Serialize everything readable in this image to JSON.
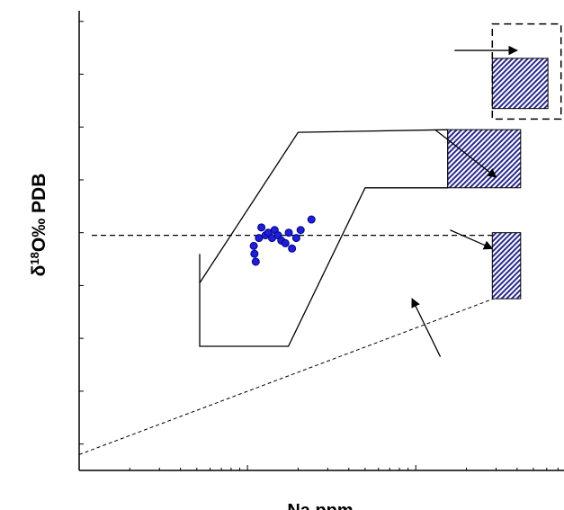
{
  "chart_data": {
    "type": "scatter",
    "title": "",
    "xlabel": "Na ppm",
    "ylabel": {
      "prefix": "δ",
      "superscript": "18",
      "suffix": "O‰ PDB"
    },
    "x_scale": "log",
    "x_ticks_labeled": false,
    "y_ticks_labeled": false,
    "legend": "none",
    "grid": false,
    "colors": {
      "points": "#1f1fd6",
      "point_stroke": "#00008b",
      "boxes": "#2a2a8c",
      "lines": "#000000"
    },
    "series": [
      {
        "type": "scatter",
        "points": [
          {
            "x": 109,
            "y": 2.75
          },
          {
            "x": 110,
            "y": 2.6
          },
          {
            "x": 112,
            "y": 2.45
          },
          {
            "x": 117,
            "y": 2.9
          },
          {
            "x": 121,
            "y": 3.1
          },
          {
            "x": 128,
            "y": 2.95
          },
          {
            "x": 133,
            "y": 3.0
          },
          {
            "x": 140,
            "y": 2.9
          },
          {
            "x": 145,
            "y": 3.05
          },
          {
            "x": 152,
            "y": 2.95
          },
          {
            "x": 159,
            "y": 2.85
          },
          {
            "x": 168,
            "y": 2.8
          },
          {
            "x": 176,
            "y": 3.0
          },
          {
            "x": 184,
            "y": 2.7
          },
          {
            "x": 195,
            "y": 2.9
          },
          {
            "x": 207,
            "y": 3.05
          },
          {
            "x": 240,
            "y": 3.25
          }
        ]
      }
    ],
    "reference_line": {
      "style": "dashed",
      "y": 2.95
    },
    "trend_line": {
      "style": "dashed",
      "from": {
        "x": 10,
        "y": -1.2
      },
      "to": {
        "x": 2900,
        "y": 1.75
      }
    },
    "field_outline": [
      {
        "x": 52,
        "y": 2.6
      },
      {
        "x": 52,
        "y": 0.85
      },
      {
        "x": 175,
        "y": 0.85
      },
      {
        "x": 500,
        "y": 3.85
      },
      {
        "x": 1550,
        "y": 3.85
      },
      {
        "x": 1550,
        "y": 4.95
      },
      {
        "x": 200,
        "y": 4.9
      },
      {
        "x": 52,
        "y": 2.05
      }
    ],
    "boxes": [
      {
        "style": "hatched",
        "x0": 2850,
        "x1": 4200,
        "y0": 1.75,
        "y1": 3.0
      },
      {
        "style": "hatched",
        "x0": 1550,
        "x1": 4200,
        "y0": 3.85,
        "y1": 4.95
      },
      {
        "style": "hatched",
        "x0": 2850,
        "x1": 6100,
        "y0": 5.35,
        "y1": 6.3
      },
      {
        "style": "dashed-outline",
        "x0": 2850,
        "x1": 7300,
        "y0": 5.15,
        "y1": 6.95
      }
    ],
    "arrows": [
      {
        "from": {
          "x": 1700,
          "y": 6.45
        },
        "to": {
          "x": 4000,
          "y": 6.45
        }
      },
      {
        "from": {
          "x": 1300,
          "y": 4.95
        },
        "to": {
          "x": 3000,
          "y": 4.05
        }
      },
      {
        "from": {
          "x": 1600,
          "y": 3.05
        },
        "to": {
          "x": 2850,
          "y": 2.7
        }
      },
      {
        "from": {
          "x": 1400,
          "y": 0.65
        },
        "to": {
          "x": 950,
          "y": 1.75
        }
      }
    ]
  }
}
